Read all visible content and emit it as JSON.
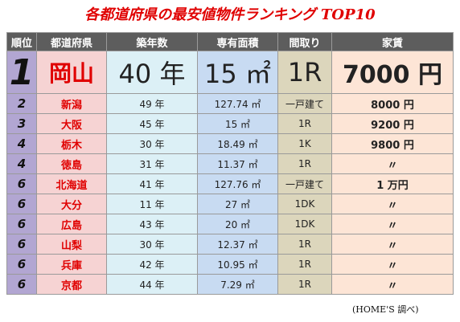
{
  "title": "各都道府県の最安値物件ランキング TOP10",
  "table": {
    "header": [
      "順位",
      "都道府県",
      "築年数",
      "専有面積",
      "間取り",
      "家賃"
    ],
    "rows": [
      [
        "1",
        "岡山",
        "40 年",
        "15 ㎡",
        "1R",
        "7000 円"
      ],
      [
        "2",
        "新潟",
        "49 年",
        "127.74 ㎡",
        "一戸建て",
        "8000 円"
      ],
      [
        "3",
        "大阪",
        "45 年",
        "15 ㎡",
        "1R",
        "9200 円"
      ],
      [
        "4",
        "栃木",
        "30 年",
        "18.49 ㎡",
        "1K",
        "9800 円"
      ],
      [
        "4",
        "徳島",
        "31 年",
        "11.37 ㎡",
        "1R",
        "〃"
      ],
      [
        "6",
        "北海道",
        "41 年",
        "127.76 ㎡",
        "一戸建て",
        "1 万円"
      ],
      [
        "6",
        "大分",
        "11 年",
        "27 ㎡",
        "1DK",
        "〃"
      ],
      [
        "6",
        "広島",
        "43 年",
        "20 ㎡",
        "1DK",
        "〃"
      ],
      [
        "6",
        "山梨",
        "30 年",
        "12.37 ㎡",
        "1R",
        "〃"
      ],
      [
        "6",
        "兵庫",
        "42 年",
        "10.95 ㎡",
        "1R",
        "〃"
      ],
      [
        "6",
        "京都",
        "44 年",
        "7.29 ㎡",
        "1R",
        "〃"
      ]
    ]
  },
  "note": "(HOME'S 調べ)"
}
